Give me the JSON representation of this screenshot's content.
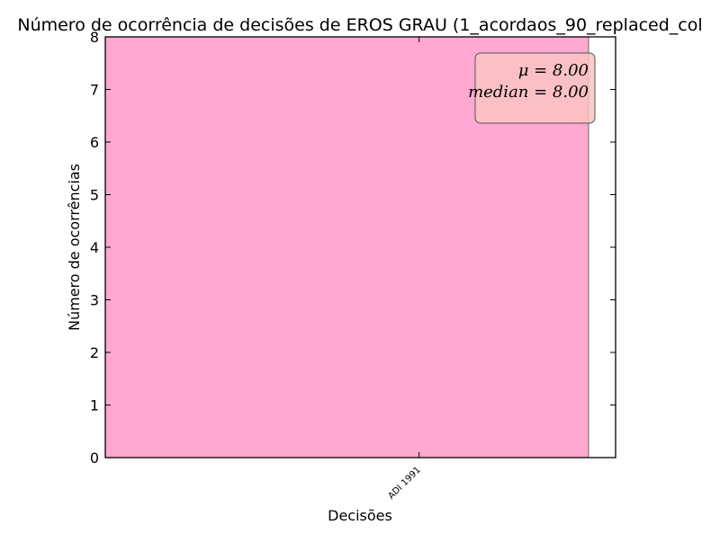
{
  "chart_data": {
    "type": "bar",
    "title": "Número de ocorrência de decisões de EROS GRAU (1_acordaos_90_replaced_col",
    "xlabel": "Decisões",
    "ylabel": "Número de ocorrências",
    "categories": [
      "ADI 1991"
    ],
    "values": [
      8
    ],
    "ylim": [
      0,
      8
    ],
    "yticks": [
      0,
      1,
      2,
      3,
      4,
      5,
      6,
      7,
      8
    ],
    "bar_color": "#ffa8d1",
    "grid": false,
    "stats_box": {
      "mean_label": "μ = 8.00",
      "median_label": "median = 8.00",
      "color": "#f9c4c4",
      "placement": "top-right"
    }
  }
}
